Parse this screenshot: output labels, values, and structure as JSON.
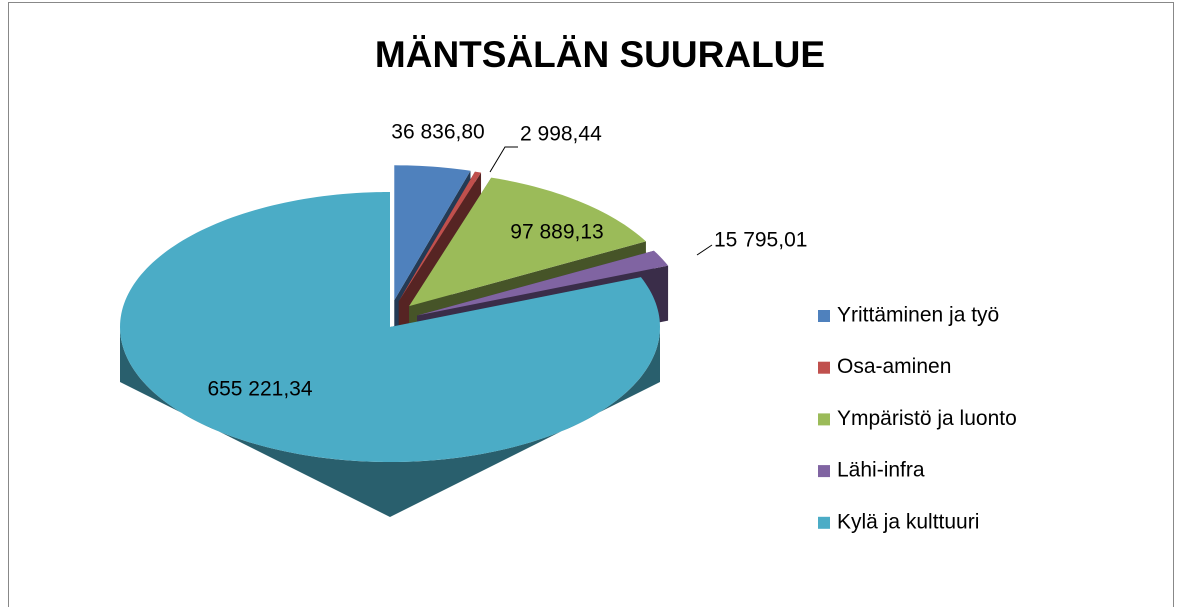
{
  "chart_data": {
    "type": "pie",
    "title": "MÄNTSÄLÄN SUURALUE",
    "categories": [
      "Yrittäminen ja työ",
      "Osa-aminen",
      "Ympäristö ja luonto",
      "Lähi-infra",
      "Kylä ja kulttuuri"
    ],
    "values": [
      36836.8,
      2998.44,
      97889.13,
      15795.01,
      655221.34
    ],
    "value_labels": [
      "36 836,80",
      "2 998,44",
      "97 889,13",
      "15 795,01",
      "655 221,34"
    ],
    "colors": [
      "#4f81bd",
      "#c0504d",
      "#9bbb59",
      "#8064a2",
      "#4bacc6"
    ],
    "legend": "right"
  }
}
